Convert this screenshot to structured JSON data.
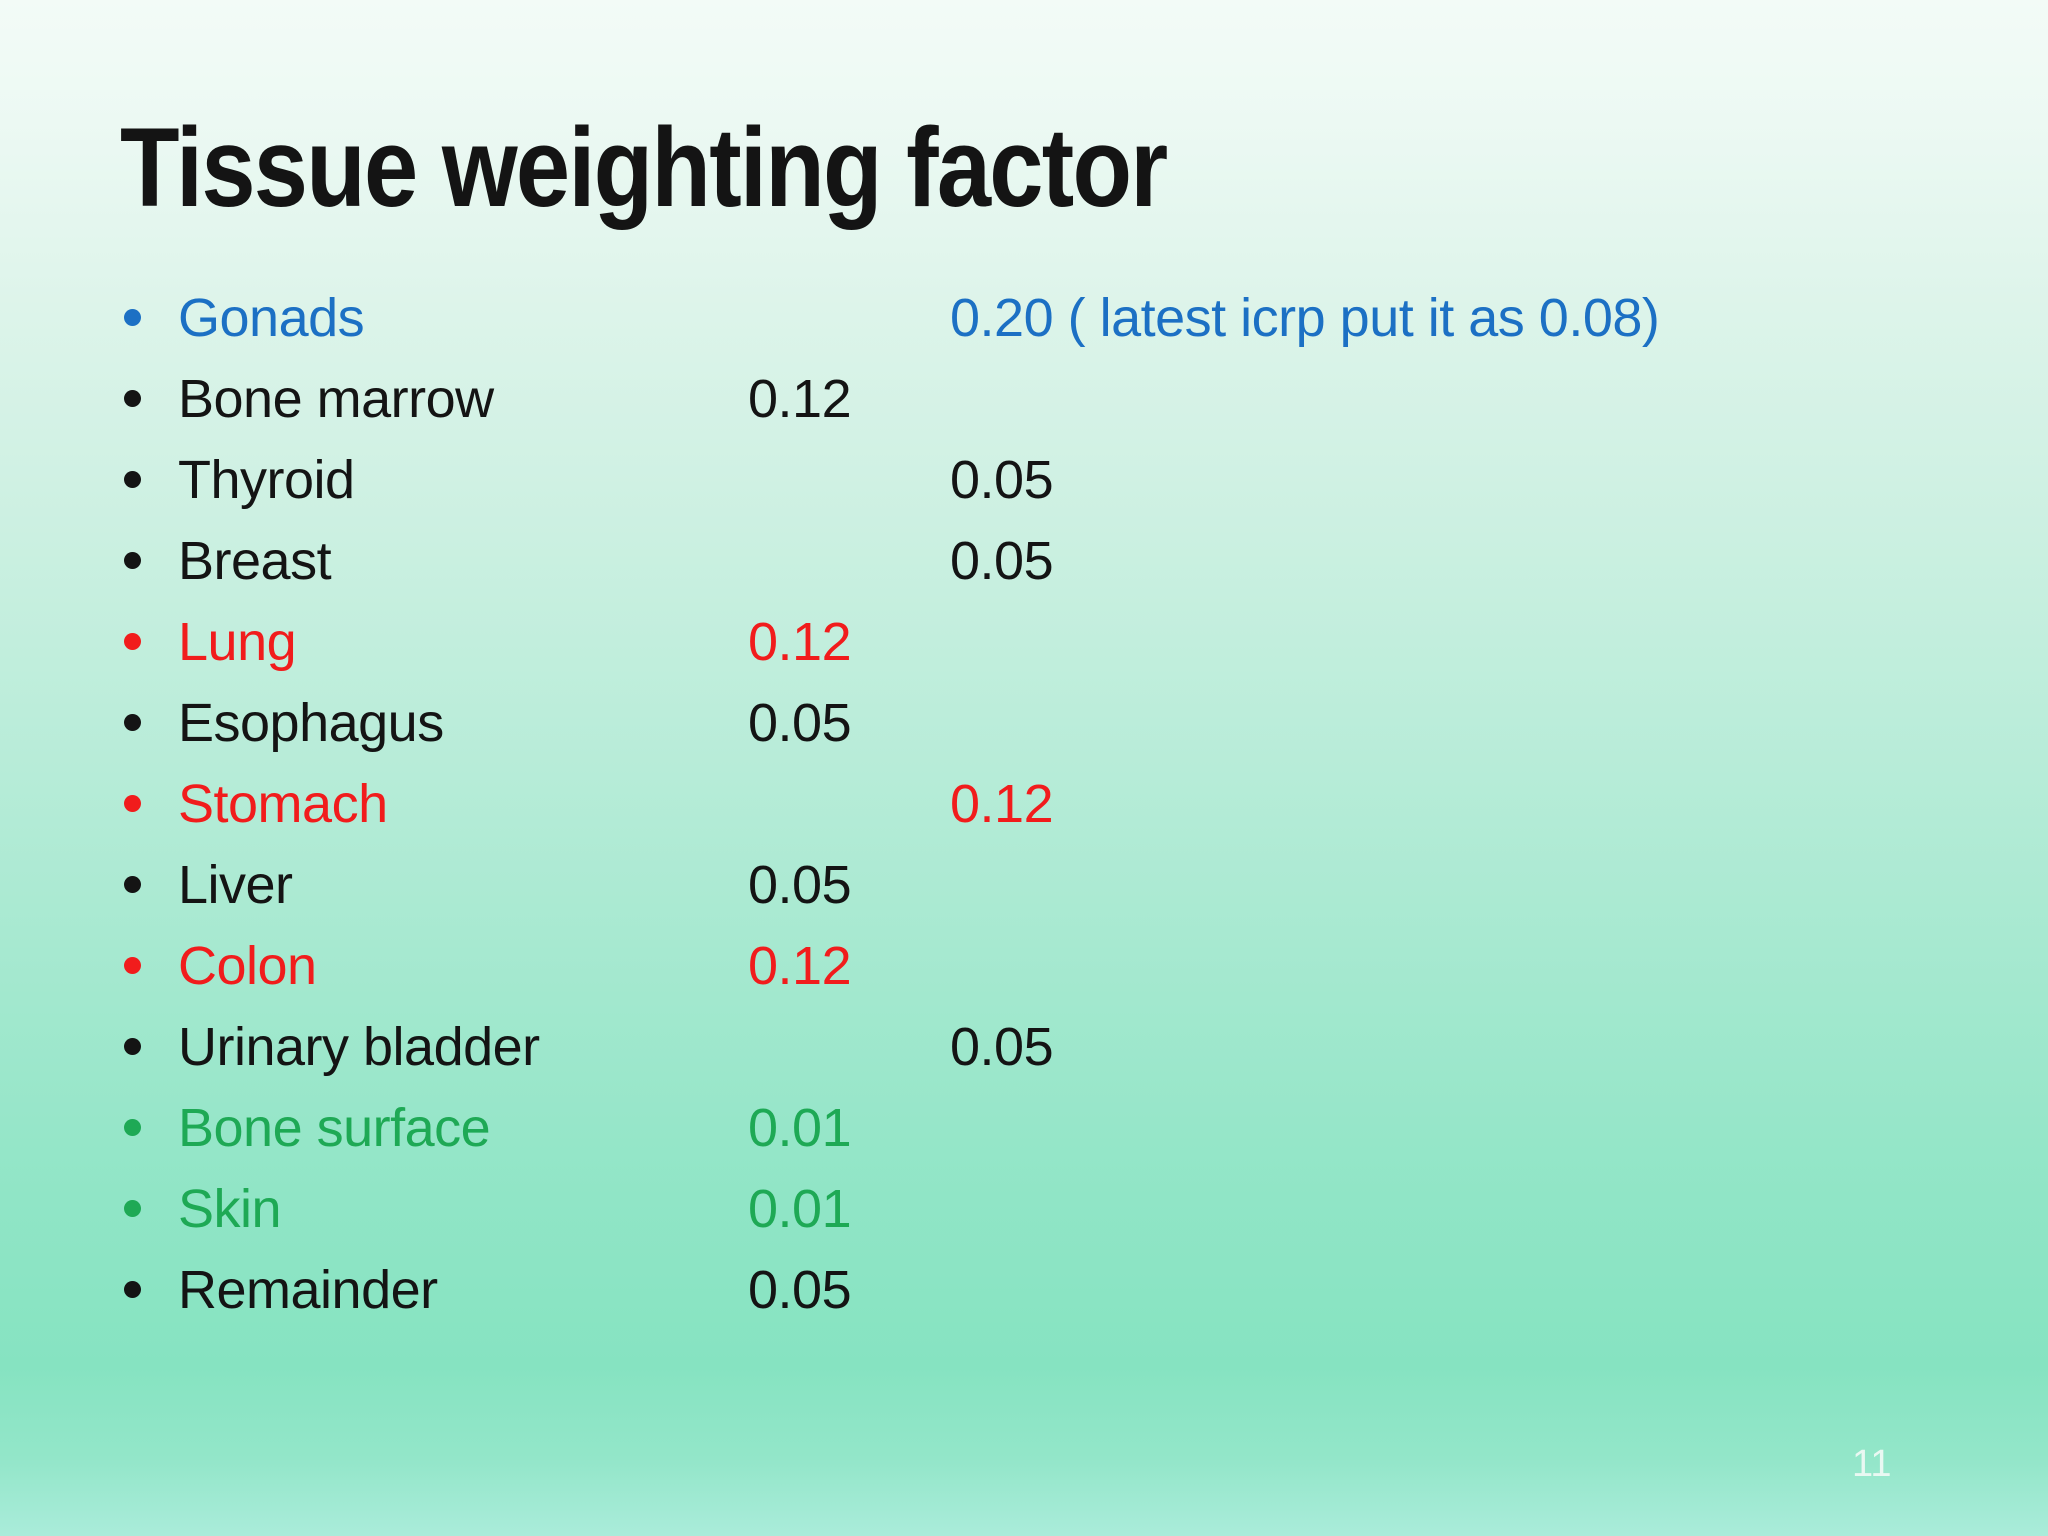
{
  "slide": {
    "title": "Tissue weighting factor",
    "page_number": "11",
    "colors": {
      "black": "#141414",
      "blue": "#1c70c4",
      "red": "#f11c1c",
      "green": "#1ea955",
      "page_number_color": "#e9f8f2"
    },
    "items": [
      {
        "label": "Gonads",
        "value": "0.20 ( latest icrp put it as 0.08)",
        "color": "blue",
        "tab": "far"
      },
      {
        "label": "Bone marrow",
        "value": "0.12",
        "color": "black",
        "tab": "near"
      },
      {
        "label": "Thyroid",
        "value": "0.05",
        "color": "black",
        "tab": "far"
      },
      {
        "label": "Breast",
        "value": "0.05",
        "color": "black",
        "tab": "far"
      },
      {
        "label": "Lung",
        "value": "0.12",
        "color": "red",
        "tab": "near"
      },
      {
        "label": "Esophagus",
        "value": "0.05",
        "color": "black",
        "tab": "near"
      },
      {
        "label": "Stomach",
        "value": "0.12",
        "color": "red",
        "tab": "far"
      },
      {
        "label": "Liver",
        "value": "0.05",
        "color": "black",
        "tab": "near"
      },
      {
        "label": "Colon",
        "value": "0.12",
        "color": "red",
        "tab": "near"
      },
      {
        "label": "Urinary bladder",
        "value": "0.05",
        "color": "black",
        "tab": "far"
      },
      {
        "label": "Bone surface",
        "value": "0.01",
        "color": "green",
        "tab": "near"
      },
      {
        "label": "Skin",
        "value": "0.01",
        "color": "green",
        "tab": "near"
      },
      {
        "label": "Remainder",
        "value": "0.05",
        "color": "black",
        "tab": "near"
      }
    ]
  }
}
